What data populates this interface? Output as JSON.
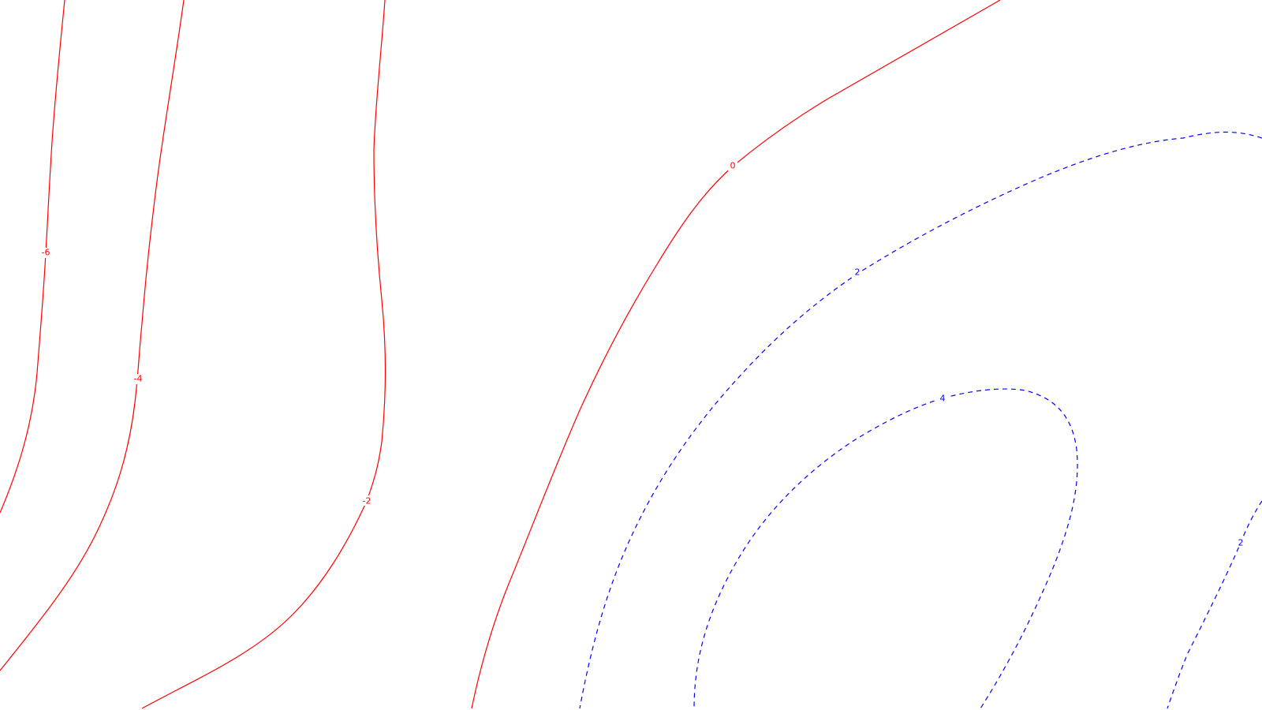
{
  "map": {
    "background_color": "#ffffff",
    "contours": [
      {
        "id": "c-neg6",
        "label": "-6",
        "color": "#ff0000",
        "style": "solid"
      },
      {
        "id": "c-neg4",
        "label": "-4",
        "color": "#ff0000",
        "style": "solid"
      },
      {
        "id": "c-neg2",
        "label": "-2",
        "color": "#ff0000",
        "style": "solid"
      },
      {
        "id": "c-0",
        "label": "0",
        "color": "#ff0000",
        "style": "solid"
      },
      {
        "id": "c-2a",
        "label": "2",
        "color": "#0000ff",
        "style": "dashed"
      },
      {
        "id": "c-4",
        "label": "4",
        "color": "#0000ff",
        "style": "dashed"
      },
      {
        "id": "c-2b",
        "label": "2",
        "color": "#0000ff",
        "style": "dashed"
      }
    ]
  }
}
